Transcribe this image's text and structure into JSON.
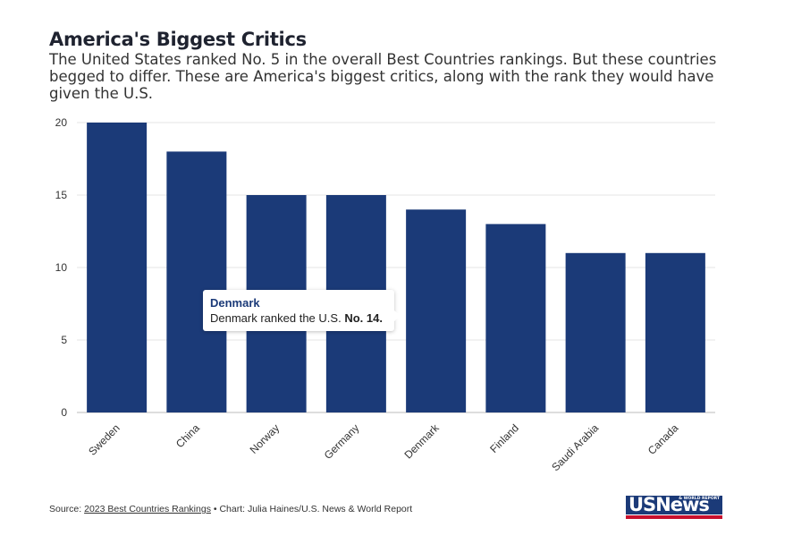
{
  "header": {
    "title": "America's Biggest Critics",
    "subtitle": "The United States ranked No. 5 in the overall Best Countries rankings. But these countries begged to differ. These are America's biggest critics, along with the rank they would have given the U.S."
  },
  "chart_data": {
    "type": "bar",
    "categories": [
      "Sweden",
      "China",
      "Norway",
      "Germany",
      "Denmark",
      "Finland",
      "Saudi Arabia",
      "Canada"
    ],
    "values": [
      20,
      18,
      15,
      15,
      14,
      13,
      11,
      11
    ],
    "ylim": [
      0,
      20
    ],
    "yticks": [
      0,
      5,
      10,
      15,
      20
    ],
    "grid": true,
    "bar_color": "#1b3a78"
  },
  "tooltip": {
    "title": "Denmark",
    "text": "Denmark ranked the U.S.",
    "value": "No. 14."
  },
  "footer": {
    "source_prefix": "Source:",
    "source_link": "2023 Best Countries Rankings",
    "credit": "• Chart: Julia Haines/U.S. News & World Report"
  },
  "logo": {
    "text": "USNews",
    "small_text": "& WORLD REPORT",
    "colors": {
      "blue": "#1b3a78",
      "red": "#c8102e"
    }
  }
}
